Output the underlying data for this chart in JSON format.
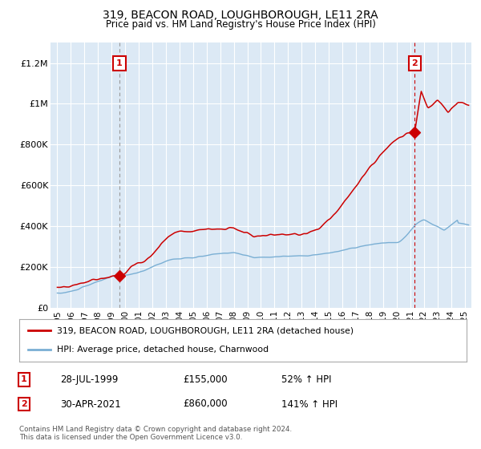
{
  "title": "319, BEACON ROAD, LOUGHBOROUGH, LE11 2RA",
  "subtitle": "Price paid vs. HM Land Registry's House Price Index (HPI)",
  "background_color": "#ffffff",
  "plot_bg_color": "#dce9f5",
  "grid_color": "#ffffff",
  "legend1_label": "319, BEACON ROAD, LOUGHBOROUGH, LE11 2RA (detached house)",
  "legend2_label": "HPI: Average price, detached house, Charnwood",
  "red_color": "#cc0000",
  "blue_color": "#7aafd4",
  "marker1_year": 1999.57,
  "marker1_value": 155000,
  "marker1_text": "28-JUL-1999",
  "marker1_price": "£155,000",
  "marker1_hpi": "52% ↑ HPI",
  "marker2_year": 2021.33,
  "marker2_value": 860000,
  "marker2_text": "30-APR-2021",
  "marker2_price": "£860,000",
  "marker2_hpi": "141% ↑ HPI",
  "footer": "Contains HM Land Registry data © Crown copyright and database right 2024.\nThis data is licensed under the Open Government Licence v3.0.",
  "ylim": [
    0,
    1300000
  ],
  "yticks": [
    0,
    200000,
    400000,
    600000,
    800000,
    1000000,
    1200000
  ],
  "ytick_labels": [
    "£0",
    "£200K",
    "£400K",
    "£600K",
    "£800K",
    "£1M",
    "£1.2M"
  ],
  "xticks": [
    1995,
    1996,
    1997,
    1998,
    1999,
    2000,
    2001,
    2002,
    2003,
    2004,
    2005,
    2006,
    2007,
    2008,
    2009,
    2010,
    2011,
    2012,
    2013,
    2014,
    2015,
    2016,
    2017,
    2018,
    2019,
    2020,
    2021,
    2022,
    2023,
    2024,
    2025
  ]
}
